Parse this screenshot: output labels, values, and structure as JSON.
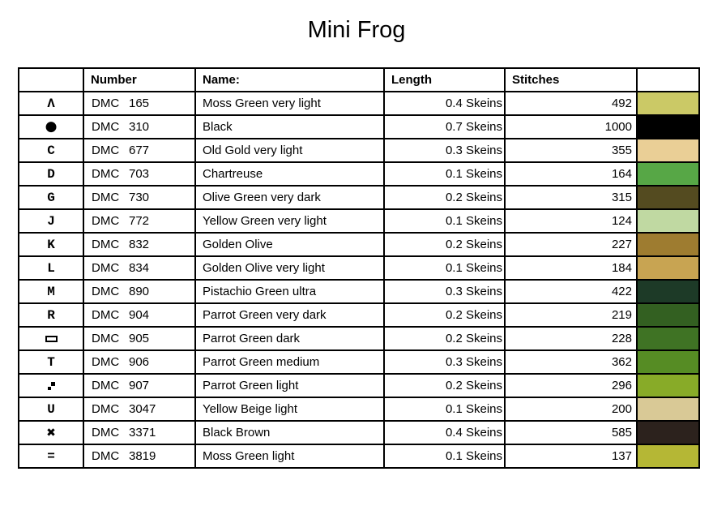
{
  "page": {
    "title": "Mini Frog",
    "background_color": "#ffffff",
    "border_color": "#000000"
  },
  "table": {
    "brand": "DMC",
    "headers": {
      "symbol": "",
      "number": "Number",
      "name": "Name:",
      "length": "Length",
      "stitches": "Stitches",
      "color": ""
    },
    "rows": [
      {
        "symbol": {
          "kind": "char",
          "char": "Λ",
          "font": "mono",
          "name": "symbol-caret"
        },
        "code": "165",
        "name": "Moss Green very light",
        "length": "0.4 Skeins",
        "stitches": "492",
        "color": "#cbc966"
      },
      {
        "symbol": {
          "kind": "char",
          "char": "●",
          "font": "sans-big",
          "name": "symbol-filled-circle"
        },
        "code": "310",
        "name": "Black",
        "length": "0.7 Skeins",
        "stitches": "1000",
        "color": "#000000"
      },
      {
        "symbol": {
          "kind": "char",
          "char": "C",
          "font": "mono",
          "name": "symbol-letter-c"
        },
        "code": "677",
        "name": "Old Gold very light",
        "length": "0.3 Skeins",
        "stitches": "355",
        "color": "#eacf96"
      },
      {
        "symbol": {
          "kind": "char",
          "char": "D",
          "font": "mono",
          "name": "symbol-letter-d"
        },
        "code": "703",
        "name": "Chartreuse",
        "length": "0.1 Skeins",
        "stitches": "164",
        "color": "#57a746"
      },
      {
        "symbol": {
          "kind": "char",
          "char": "G",
          "font": "mono",
          "name": "symbol-letter-g"
        },
        "code": "730",
        "name": "Olive Green very dark",
        "length": "0.2 Skeins",
        "stitches": "315",
        "color": "#544b20"
      },
      {
        "symbol": {
          "kind": "char",
          "char": "J",
          "font": "mono",
          "name": "symbol-letter-j"
        },
        "code": "772",
        "name": "Yellow Green very light",
        "length": "0.1 Skeins",
        "stitches": "124",
        "color": "#c0d9a2"
      },
      {
        "symbol": {
          "kind": "char",
          "char": "K",
          "font": "mono",
          "name": "symbol-letter-k"
        },
        "code": "832",
        "name": "Golden Olive",
        "length": "0.2 Skeins",
        "stitches": "227",
        "color": "#9e7c30"
      },
      {
        "symbol": {
          "kind": "char",
          "char": "L",
          "font": "mono",
          "name": "symbol-letter-l"
        },
        "code": "834",
        "name": "Golden Olive very light",
        "length": "0.1 Skeins",
        "stitches": "184",
        "color": "#c8a452"
      },
      {
        "symbol": {
          "kind": "char",
          "char": "M",
          "font": "mono",
          "name": "symbol-letter-m"
        },
        "code": "890",
        "name": "Pistachio Green ultra",
        "length": "0.3 Skeins",
        "stitches": "422",
        "color": "#1d3a27"
      },
      {
        "symbol": {
          "kind": "char",
          "char": "R",
          "font": "mono",
          "name": "symbol-letter-r"
        },
        "code": "904",
        "name": "Parrot Green very dark",
        "length": "0.2 Skeins",
        "stitches": "219",
        "color": "#336021"
      },
      {
        "symbol": {
          "kind": "rect",
          "name": "symbol-rectangle-outline"
        },
        "code": "905",
        "name": "Parrot Green dark",
        "length": "0.2 Skeins",
        "stitches": "228",
        "color": "#3f7324"
      },
      {
        "symbol": {
          "kind": "char",
          "char": "T",
          "font": "mono",
          "name": "symbol-letter-t"
        },
        "code": "906",
        "name": "Parrot Green medium",
        "length": "0.3 Skeins",
        "stitches": "362",
        "color": "#568c24"
      },
      {
        "symbol": {
          "kind": "squares",
          "name": "symbol-diagonal-squares"
        },
        "code": "907",
        "name": "Parrot Green light",
        "length": "0.2 Skeins",
        "stitches": "296",
        "color": "#88ab28"
      },
      {
        "symbol": {
          "kind": "char",
          "char": "U",
          "font": "mono",
          "name": "symbol-letter-u"
        },
        "code": "3047",
        "name": "Yellow Beige light",
        "length": "0.1 Skeins",
        "stitches": "200",
        "color": "#d9c996"
      },
      {
        "symbol": {
          "kind": "char",
          "char": "✖",
          "font": "sans",
          "name": "symbol-heavy-cross"
        },
        "code": "3371",
        "name": "Black Brown",
        "length": "0.4 Skeins",
        "stitches": "585",
        "color": "#2c221d"
      },
      {
        "symbol": {
          "kind": "char",
          "char": "=",
          "font": "mono",
          "name": "symbol-equals"
        },
        "code": "3819",
        "name": "Moss Green light",
        "length": "0.1 Skeins",
        "stitches": "137",
        "color": "#b5b735"
      }
    ]
  }
}
